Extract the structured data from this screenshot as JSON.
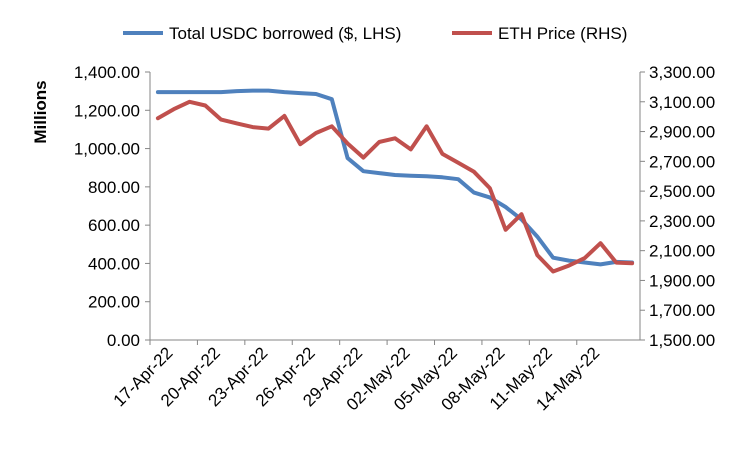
{
  "chart_data": {
    "type": "line",
    "x_ticks": [
      "17-Apr-22",
      "20-Apr-22",
      "23-Apr-22",
      "26-Apr-22",
      "29-Apr-22",
      "02-May-22",
      "05-May-22",
      "08-May-22",
      "11-May-22",
      "14-May-22"
    ],
    "x_tick_index": [
      0,
      3,
      6,
      9,
      12,
      15,
      18,
      21,
      24,
      27
    ],
    "n_points": 31,
    "y_left": {
      "label": "Millions",
      "range": [
        0,
        1400
      ],
      "ticks": [
        "0.00",
        "200.00",
        "400.00",
        "600.00",
        "800.00",
        "1,000.00",
        "1,200.00",
        "1,400.00"
      ]
    },
    "y_right": {
      "label": "",
      "range": [
        1500,
        3300
      ],
      "ticks": [
        "1,500.00",
        "1,700.00",
        "1,900.00",
        "2,100.00",
        "2,300.00",
        "2,500.00",
        "2,700.00",
        "2,900.00",
        "3,100.00",
        "3,300.00"
      ]
    },
    "legend": {
      "position": "top"
    },
    "grid": false,
    "series": [
      {
        "name": "Total USDC borrowed ($, LHS)",
        "axis": "left",
        "color": "#4f81bd",
        "values": [
          1295,
          1295,
          1295,
          1295,
          1295,
          1300,
          1303,
          1303,
          1295,
          1290,
          1285,
          1258,
          950,
          882,
          872,
          862,
          858,
          855,
          850,
          840,
          770,
          745,
          695,
          630,
          540,
          430,
          415,
          405,
          395,
          408,
          405
        ]
      },
      {
        "name": "ETH Price (RHS)",
        "axis": "right",
        "color": "#c0504d",
        "values": [
          2990,
          3050,
          3100,
          3075,
          2980,
          2955,
          2930,
          2920,
          3005,
          2815,
          2890,
          2935,
          2820,
          2725,
          2830,
          2855,
          2780,
          2935,
          2750,
          2690,
          2630,
          2520,
          2240,
          2345,
          2070,
          1960,
          2000,
          2050,
          2150,
          2020,
          2015
        ]
      }
    ]
  }
}
